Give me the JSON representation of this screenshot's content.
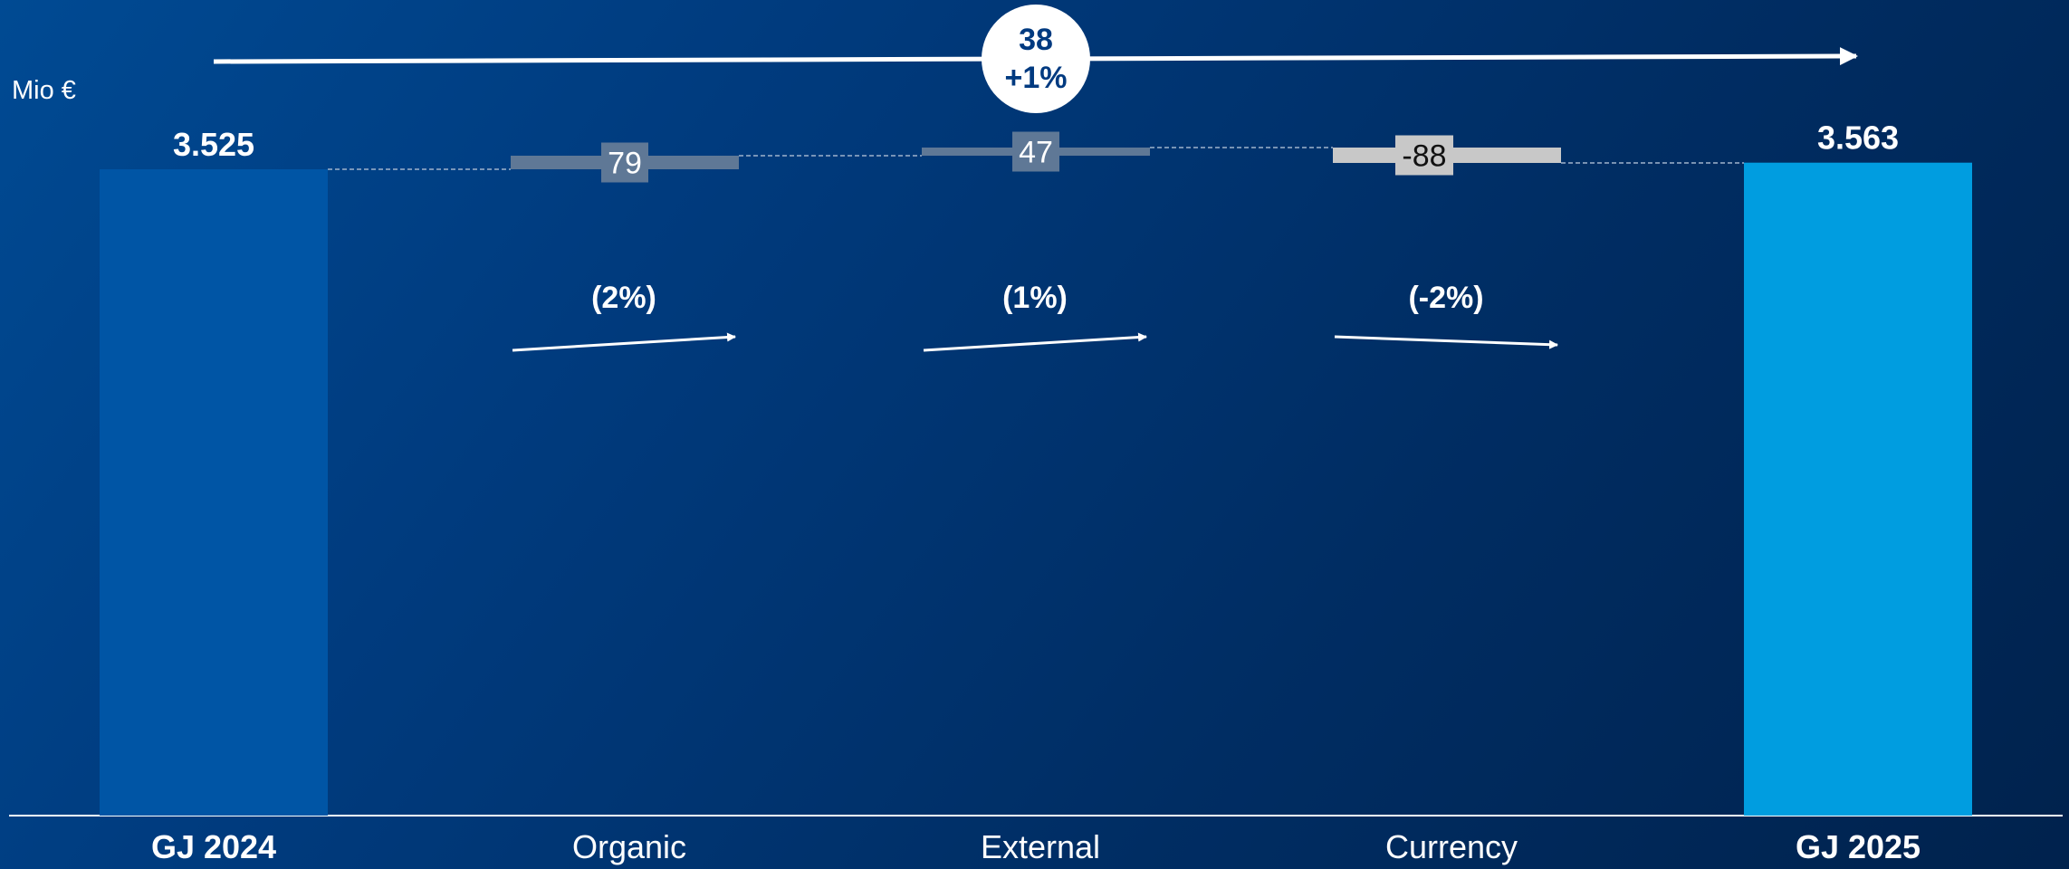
{
  "chart_data": {
    "type": "bar",
    "subtype": "waterfall",
    "unit_label": "Mio €",
    "categories": [
      "GJ 2024",
      "Organic",
      "External",
      "Currency",
      "GJ 2025"
    ],
    "values": [
      3525,
      79,
      47,
      -88,
      3563
    ],
    "value_labels": [
      "3.525",
      "79",
      "47",
      "-88",
      "3.563"
    ],
    "percent_labels": [
      "",
      "(2%)",
      "(1%)",
      "(-2%)",
      ""
    ],
    "total_change": {
      "value": "38",
      "percent": "+1%"
    },
    "colors": {
      "start_bar": "#0055a5",
      "end_bar": "#009de0",
      "increase": "#5f7896",
      "decrease": "#c8c8c8",
      "text": "#ffffff",
      "bubble_text": "#003a80"
    }
  }
}
